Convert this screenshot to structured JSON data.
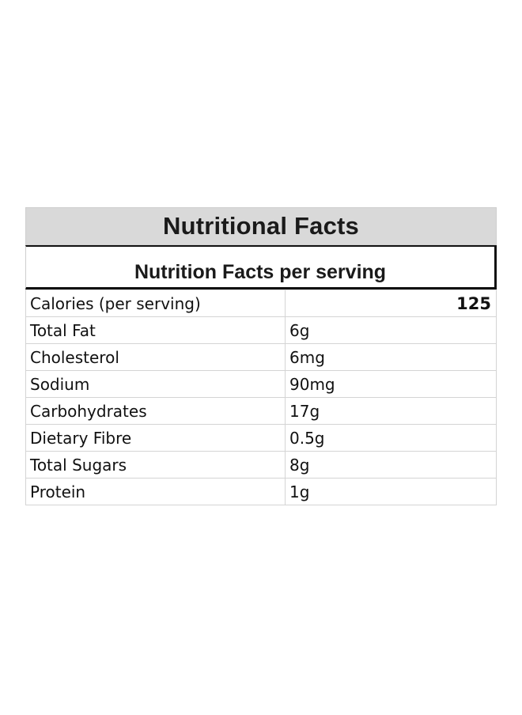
{
  "title": "Nutritional Facts",
  "subtitle": "Nutrition Facts per serving",
  "rows": [
    {
      "label": "Calories (per serving)",
      "value": "125"
    },
    {
      "label": "Total Fat",
      "value": "6g"
    },
    {
      "label": "Cholesterol",
      "value": "6mg"
    },
    {
      "label": "Sodium",
      "value": "90mg"
    },
    {
      "label": "Carbohydrates",
      "value": "17g"
    },
    {
      "label": "Dietary Fibre",
      "value": "0.5g"
    },
    {
      "label": "Total Sugars",
      "value": "8g"
    },
    {
      "label": "Protein",
      "value": "1g"
    }
  ],
  "colors": {
    "title_background": "#d9d9d9",
    "grid_lines": "#d4d4d4",
    "text": "#111111"
  }
}
